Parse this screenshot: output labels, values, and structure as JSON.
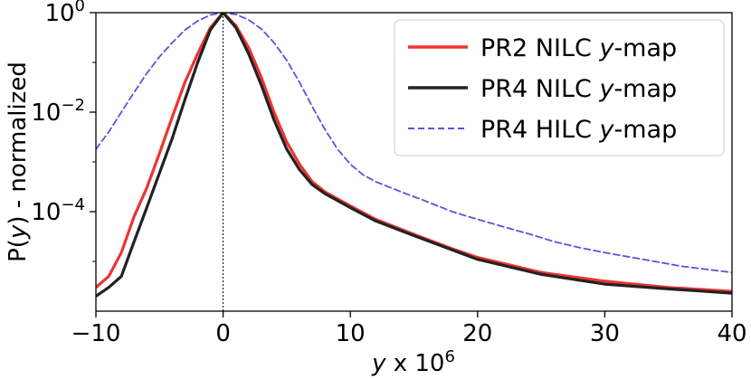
{
  "chart_data": {
    "type": "line",
    "title": "",
    "xlabel_var": "y",
    "xlabel_rest": " x 10",
    "xlabel_exp": "6",
    "ylabel_pre": "P(",
    "ylabel_var": "y",
    "ylabel_post": ") - normalized",
    "xlim": [
      -10,
      40
    ],
    "ylim": [
      1e-06,
      1
    ],
    "y_scale": "log",
    "x_ticks": [
      -10,
      0,
      10,
      20,
      30,
      40
    ],
    "x_tick_labels": [
      "−10",
      "0",
      "10",
      "20",
      "30",
      "40"
    ],
    "y_ticks": [
      {
        "value": 1,
        "base": "10",
        "exp": "0"
      },
      {
        "value": 0.01,
        "base": "10",
        "exp": "−2"
      },
      {
        "value": 0.0001,
        "base": "10",
        "exp": "−4"
      }
    ],
    "vline_x": 0,
    "legend_location": "upper right",
    "series": [
      {
        "name": "PR2 NILC y-map",
        "label_pre": "PR2 NILC ",
        "label_var": "y",
        "label_post": "-map",
        "color": "#ee3333",
        "style": "solid",
        "points": [
          [
            -10,
            3e-06
          ],
          [
            -9,
            5e-06
          ],
          [
            -8,
            1.5e-05
          ],
          [
            -7,
            8e-05
          ],
          [
            -6,
            0.0003
          ],
          [
            -5,
            0.0015
          ],
          [
            -4,
            0.008
          ],
          [
            -3,
            0.04
          ],
          [
            -2,
            0.15
          ],
          [
            -1,
            0.5
          ],
          [
            0,
            1
          ],
          [
            1,
            0.55
          ],
          [
            2,
            0.2
          ],
          [
            3,
            0.05
          ],
          [
            4,
            0.01
          ],
          [
            5,
            0.0025
          ],
          [
            6,
            0.0009
          ],
          [
            7,
            0.0004
          ],
          [
            8,
            0.00025
          ],
          [
            10,
            0.00013
          ],
          [
            12,
            7e-05
          ],
          [
            15,
            3.5e-05
          ],
          [
            18,
            1.8e-05
          ],
          [
            20,
            1.2e-05
          ],
          [
            25,
            6e-06
          ],
          [
            30,
            4e-06
          ],
          [
            35,
            3e-06
          ],
          [
            40,
            2.5e-06
          ]
        ]
      },
      {
        "name": "PR4 NILC y-map",
        "label_pre": "PR4 NILC ",
        "label_var": "y",
        "label_post": "-map",
        "color": "#222222",
        "style": "solid",
        "points": [
          [
            -10,
            2e-06
          ],
          [
            -9,
            3e-06
          ],
          [
            -8,
            5e-06
          ],
          [
            -7,
            2.5e-05
          ],
          [
            -6,
            0.00012
          ],
          [
            -5,
            0.0006
          ],
          [
            -4,
            0.003
          ],
          [
            -3,
            0.018
          ],
          [
            -2,
            0.1
          ],
          [
            -1,
            0.45
          ],
          [
            0,
            1
          ],
          [
            1,
            0.5
          ],
          [
            2,
            0.15
          ],
          [
            3,
            0.035
          ],
          [
            4,
            0.007
          ],
          [
            5,
            0.0018
          ],
          [
            6,
            0.0007
          ],
          [
            7,
            0.00035
          ],
          [
            8,
            0.00023
          ],
          [
            10,
            0.00012
          ],
          [
            12,
            6.5e-05
          ],
          [
            15,
            3.3e-05
          ],
          [
            18,
            1.7e-05
          ],
          [
            20,
            1.1e-05
          ],
          [
            25,
            5.5e-06
          ],
          [
            30,
            3.5e-06
          ],
          [
            35,
            2.8e-06
          ],
          [
            40,
            2.3e-06
          ]
        ]
      },
      {
        "name": "PR4 HILC y-map",
        "label_pre": "PR4 HILC ",
        "label_var": "y",
        "label_post": "-map",
        "color": "#5555dd",
        "style": "dashed",
        "points": [
          [
            -10,
            0.0018
          ],
          [
            -9,
            0.004
          ],
          [
            -8,
            0.01
          ],
          [
            -7,
            0.025
          ],
          [
            -6,
            0.06
          ],
          [
            -5,
            0.13
          ],
          [
            -4,
            0.25
          ],
          [
            -3,
            0.45
          ],
          [
            -2,
            0.68
          ],
          [
            -1,
            0.9
          ],
          [
            0,
            1
          ],
          [
            1,
            0.92
          ],
          [
            2,
            0.72
          ],
          [
            3,
            0.47
          ],
          [
            4,
            0.25
          ],
          [
            5,
            0.11
          ],
          [
            6,
            0.04
          ],
          [
            7,
            0.013
          ],
          [
            8,
            0.0045
          ],
          [
            9,
            0.0018
          ],
          [
            10,
            0.0009
          ],
          [
            11,
            0.00055
          ],
          [
            12,
            0.0004
          ],
          [
            14,
            0.00025
          ],
          [
            16,
            0.00016
          ],
          [
            18,
            0.0001
          ],
          [
            20,
            7e-05
          ],
          [
            22,
            5e-05
          ],
          [
            24,
            3.6e-05
          ],
          [
            26,
            2.5e-05
          ],
          [
            28,
            1.9e-05
          ],
          [
            30,
            1.5e-05
          ],
          [
            33,
            1.1e-05
          ],
          [
            36,
            8e-06
          ],
          [
            40,
            6e-06
          ]
        ]
      }
    ]
  }
}
